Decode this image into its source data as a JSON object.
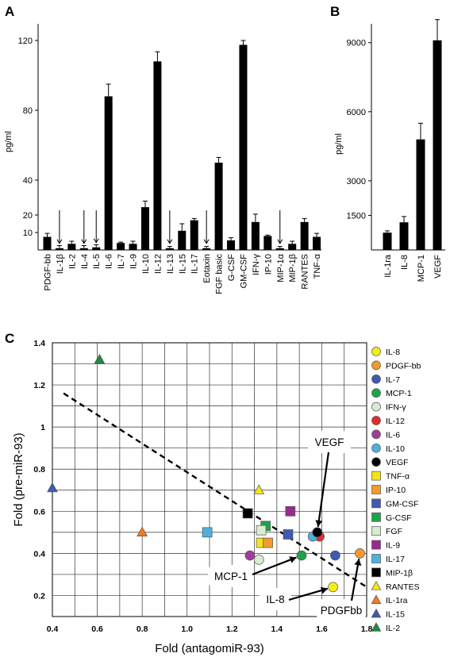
{
  "colors": {
    "ink": "#000000",
    "bar": "#000000",
    "grid": "#333333"
  },
  "chart_data": [
    {
      "panel": "A",
      "type": "bar",
      "ylabel": "pg/ml",
      "yticks": [
        10,
        20,
        40,
        80,
        120
      ],
      "ylim": [
        0,
        125
      ],
      "categories": [
        "PDGF-bb",
        "IL-1β",
        "IL-2",
        "IL-4",
        "IL-5",
        "IL-6",
        "IL-7",
        "IL-9",
        "IL-10",
        "IL-12",
        "IL-13",
        "IL-15",
        "IL-17",
        "Eotaxin",
        "FGF basic",
        "G-CSF",
        "GM-CSF",
        "IFN-γ",
        "IP-10",
        "MIP-1α",
        "MIP-1β",
        "RANTES",
        "TNF-α"
      ],
      "values": [
        7.5,
        1,
        3.5,
        1,
        1.5,
        88,
        4,
        3.5,
        24.5,
        108,
        1,
        11,
        17,
        1,
        50,
        5.5,
        117.5,
        16,
        8,
        1,
        3.5,
        16,
        7.5
      ],
      "errors": [
        2,
        1.5,
        1.5,
        1.5,
        1.5,
        7,
        0.5,
        1.5,
        3.5,
        5.5,
        1,
        4,
        1,
        1,
        3,
        1.5,
        2.5,
        4.5,
        0.5,
        1,
        1.5,
        2,
        2
      ],
      "arrows": [
        "IL-1β",
        "IL-4",
        "IL-5",
        "IL-13",
        "Eotaxin",
        "MIP-1α"
      ]
    },
    {
      "panel": "B",
      "type": "bar",
      "ylabel": "pg/ml",
      "yticks": [
        1500,
        3000,
        6000,
        9000
      ],
      "ylim": [
        0,
        9700
      ],
      "categories": [
        "IL-1ra",
        "IL-8",
        "MCP-1",
        "VEGF"
      ],
      "values": [
        750,
        1200,
        4800,
        9100
      ],
      "errors": [
        80,
        250,
        700,
        900
      ]
    },
    {
      "panel": "C",
      "type": "scatter",
      "xlabel": "Fold (antagomiR-93)",
      "ylabel": "Fold (pre-miR-93)",
      "xlim": [
        0.4,
        1.8
      ],
      "ylim": [
        0.1,
        1.4
      ],
      "xticks": [
        0.4,
        0.6,
        0.8,
        1.0,
        1.2,
        1.4,
        1.6,
        1.8
      ],
      "yticks": [
        0.2,
        0.4,
        0.6,
        0.8,
        1.0,
        1.2,
        1.4
      ],
      "grid": true,
      "trendline": [
        [
          0.45,
          1.16
        ],
        [
          1.8,
          0.24
        ]
      ],
      "series": [
        {
          "name": "IL-8",
          "marker": "circle",
          "color": "#f7ec17",
          "x": 1.65,
          "y": 0.24
        },
        {
          "name": "PDGF-bb",
          "marker": "circle",
          "color": "#f39a2c",
          "x": 1.77,
          "y": 0.4
        },
        {
          "name": "IL-7",
          "marker": "circle",
          "color": "#3f5ab0",
          "x": 1.66,
          "y": 0.39
        },
        {
          "name": "MCP-1",
          "marker": "circle",
          "color": "#1fa34a",
          "x": 1.51,
          "y": 0.39
        },
        {
          "name": "IFN-γ",
          "marker": "circle",
          "color": "#d7ecd0",
          "x": 1.32,
          "y": 0.37
        },
        {
          "name": "IL-12",
          "marker": "circle",
          "color": "#e52a2c",
          "x": 1.59,
          "y": 0.48
        },
        {
          "name": "IL-6",
          "marker": "circle",
          "color": "#a23c97",
          "x": 1.28,
          "y": 0.39
        },
        {
          "name": "IL-10",
          "marker": "circle",
          "color": "#4fb0dc",
          "x": 1.56,
          "y": 0.48
        },
        {
          "name": "VEGF",
          "marker": "circle",
          "color": "#000000",
          "x": 1.58,
          "y": 0.5
        },
        {
          "name": "TNF-α",
          "marker": "square",
          "color": "#f5e31a",
          "x": 1.33,
          "y": 0.45
        },
        {
          "name": "IP-10",
          "marker": "square",
          "color": "#f39a2c",
          "x": 1.36,
          "y": 0.45
        },
        {
          "name": "GM-CSF",
          "marker": "square",
          "color": "#3f5ab0",
          "x": 1.45,
          "y": 0.49
        },
        {
          "name": "G-CSF",
          "marker": "square",
          "color": "#1fa34a",
          "x": 1.35,
          "y": 0.53
        },
        {
          "name": "FGF",
          "marker": "square",
          "color": "#d7ecd0",
          "x": 1.33,
          "y": 0.51
        },
        {
          "name": "IL-9",
          "marker": "square",
          "color": "#9a2a8f",
          "x": 1.46,
          "y": 0.6
        },
        {
          "name": "IL-17",
          "marker": "square",
          "color": "#4fb0dc",
          "x": 1.09,
          "y": 0.5
        },
        {
          "name": "MIP-1β",
          "marker": "square",
          "color": "#000000",
          "x": 1.27,
          "y": 0.59
        },
        {
          "name": "RANTES",
          "marker": "triangle",
          "color": "#f5e31a",
          "x": 1.32,
          "y": 0.7
        },
        {
          "name": "IL-1ra",
          "marker": "triangle",
          "color": "#ef7a22",
          "x": 0.8,
          "y": 0.5
        },
        {
          "name": "IL-15",
          "marker": "triangle",
          "color": "#3f5ab0",
          "x": 0.4,
          "y": 0.71
        },
        {
          "name": "IL-2",
          "marker": "triangle",
          "color": "#1e8a3c",
          "x": 0.61,
          "y": 1.32
        }
      ],
      "callouts": [
        {
          "label": "VEGF",
          "target": "VEGF"
        },
        {
          "label": "MCP-1",
          "target": "MCP-1"
        },
        {
          "label": "IL-8",
          "target": "IL-8"
        },
        {
          "label": "PDGFbb",
          "target": "PDGF-bb"
        }
      ]
    }
  ]
}
